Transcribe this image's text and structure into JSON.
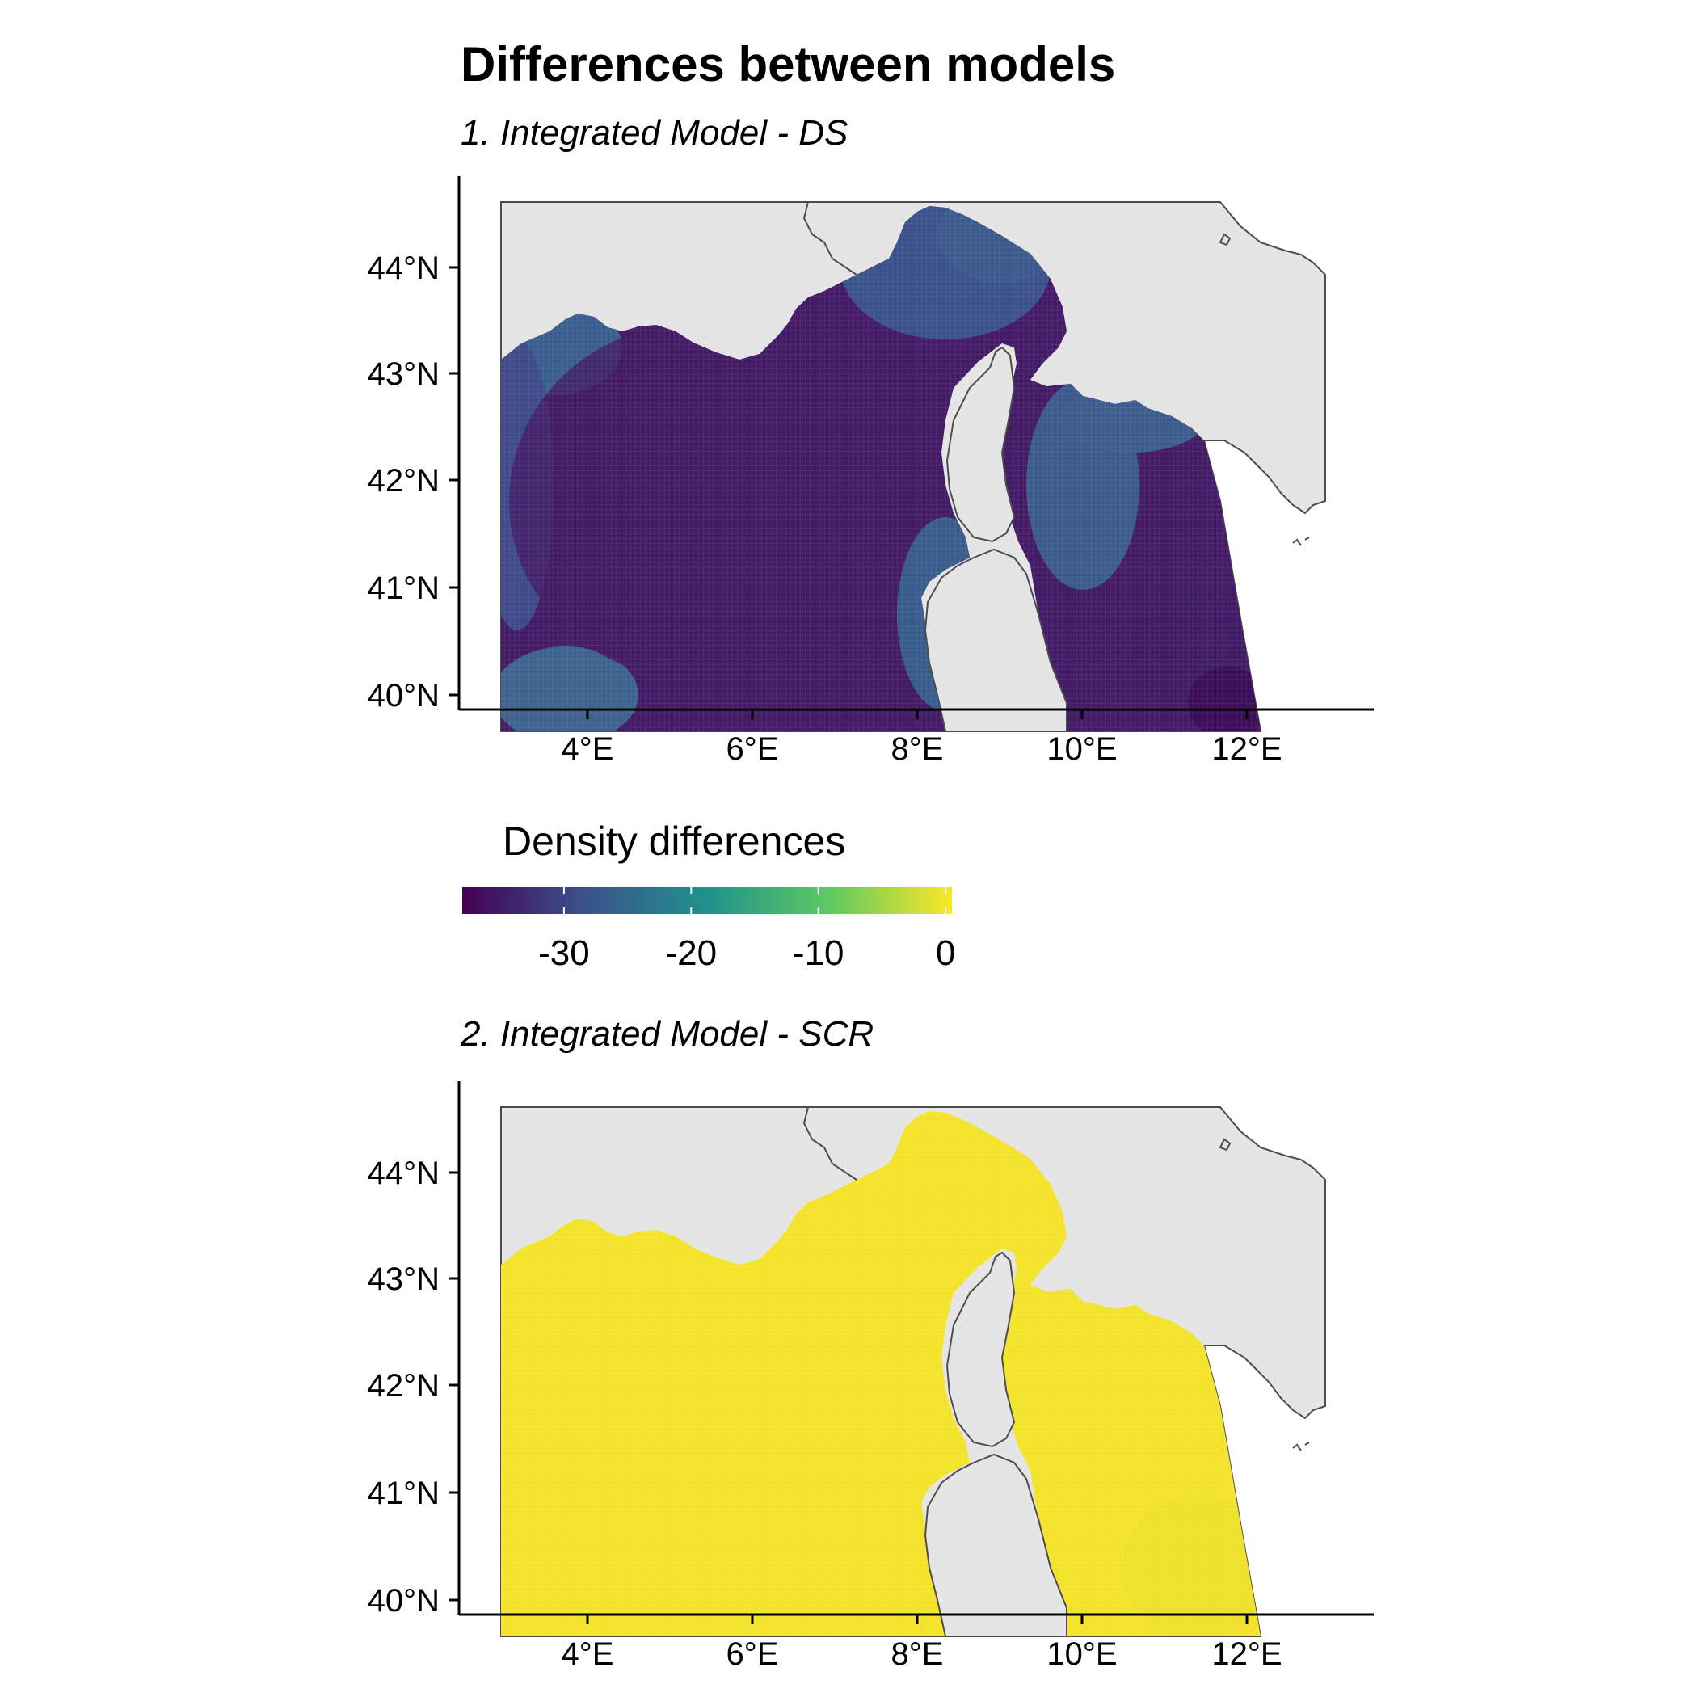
{
  "title": "Differences between models",
  "panels": [
    {
      "subtitle": "1. Integrated Model - DS",
      "x_ticks": [
        "4°E",
        "6°E",
        "8°E",
        "10°E",
        "12°E"
      ],
      "y_ticks": [
        "40°N",
        "41°N",
        "42°N",
        "43°N",
        "44°N"
      ],
      "fill": "viridis low (-37 to -25)"
    },
    {
      "subtitle": "2. Integrated Model - SCR",
      "x_ticks": [
        "4°E",
        "6°E",
        "8°E",
        "10°E",
        "12°E"
      ],
      "y_ticks": [
        "40°N",
        "41°N",
        "42°N",
        "43°N",
        "44°N"
      ],
      "fill": "viridis high (~0)"
    }
  ],
  "legend": {
    "title": "Density differences",
    "ticks": [
      "-30",
      "-20",
      "-10",
      "0"
    ],
    "range": [
      -38,
      0.5
    ],
    "colors": [
      "#440154",
      "#3b528b",
      "#21918c",
      "#5ec962",
      "#fde725"
    ]
  },
  "colors": {
    "land": "#e5e5e5",
    "coast": "#4d4d4d",
    "panel1_dark": "#431a65",
    "panel1_mid": "#3f3d84",
    "panel1_light": "#3b5b8f",
    "panel2_yellow": "#f5e52e"
  }
}
